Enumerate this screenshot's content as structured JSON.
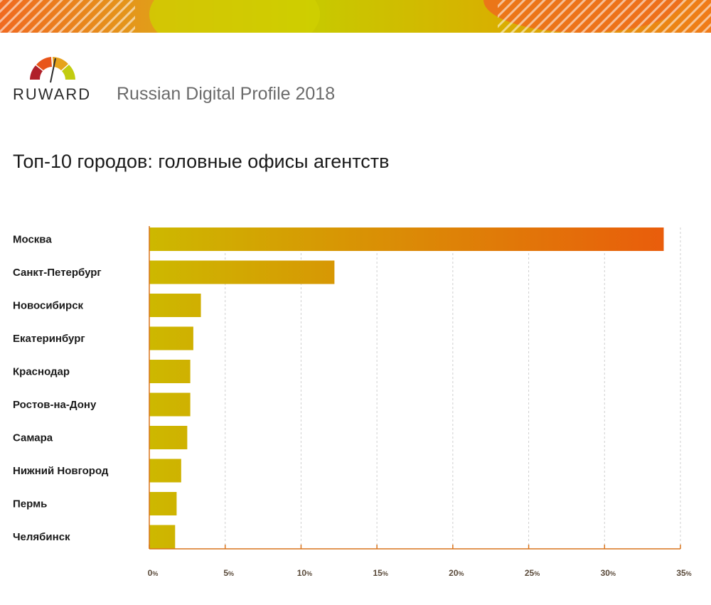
{
  "header": {
    "logo_text": "RUWARD",
    "subtitle": "Russian Digital Profile 2018",
    "banner_colors": [
      "#f06a20",
      "#e39a1a",
      "#c8c800",
      "#f07a18"
    ]
  },
  "colors": {
    "bar_start": "#cdb800",
    "bar_end": "#ea5a0c",
    "axis": "#d9741c",
    "grid": "#cfcfcf"
  },
  "chart_data": {
    "type": "bar",
    "orientation": "horizontal",
    "title": "Топ-10 городов: головные офисы агентств",
    "categories": [
      "Москва",
      "Санкт-Петербург",
      "Новосибирск",
      "Екатеринбург",
      "Краснодар",
      "Ростов-на-Дону",
      "Самара",
      "Нижний Новгород",
      "Пермь",
      "Челябинск"
    ],
    "values": [
      33.9,
      12.2,
      3.4,
      2.9,
      2.7,
      2.7,
      2.5,
      2.1,
      1.8,
      1.7
    ],
    "xlim": [
      0,
      35
    ],
    "ticks": [
      {
        "value": 0,
        "num": "0",
        "unit": "%"
      },
      {
        "value": 5,
        "num": "5",
        "unit": "%"
      },
      {
        "value": 10,
        "num": "10",
        "unit": "%"
      },
      {
        "value": 15,
        "num": "15",
        "unit": "%"
      },
      {
        "value": 20,
        "num": "20",
        "unit": "%"
      },
      {
        "value": 25,
        "num": "25",
        "unit": "%"
      },
      {
        "value": 30,
        "num": "30",
        "unit": "%"
      },
      {
        "value": 35,
        "num": "35",
        "unit": "%"
      }
    ],
    "grid": true,
    "legend": "none"
  }
}
